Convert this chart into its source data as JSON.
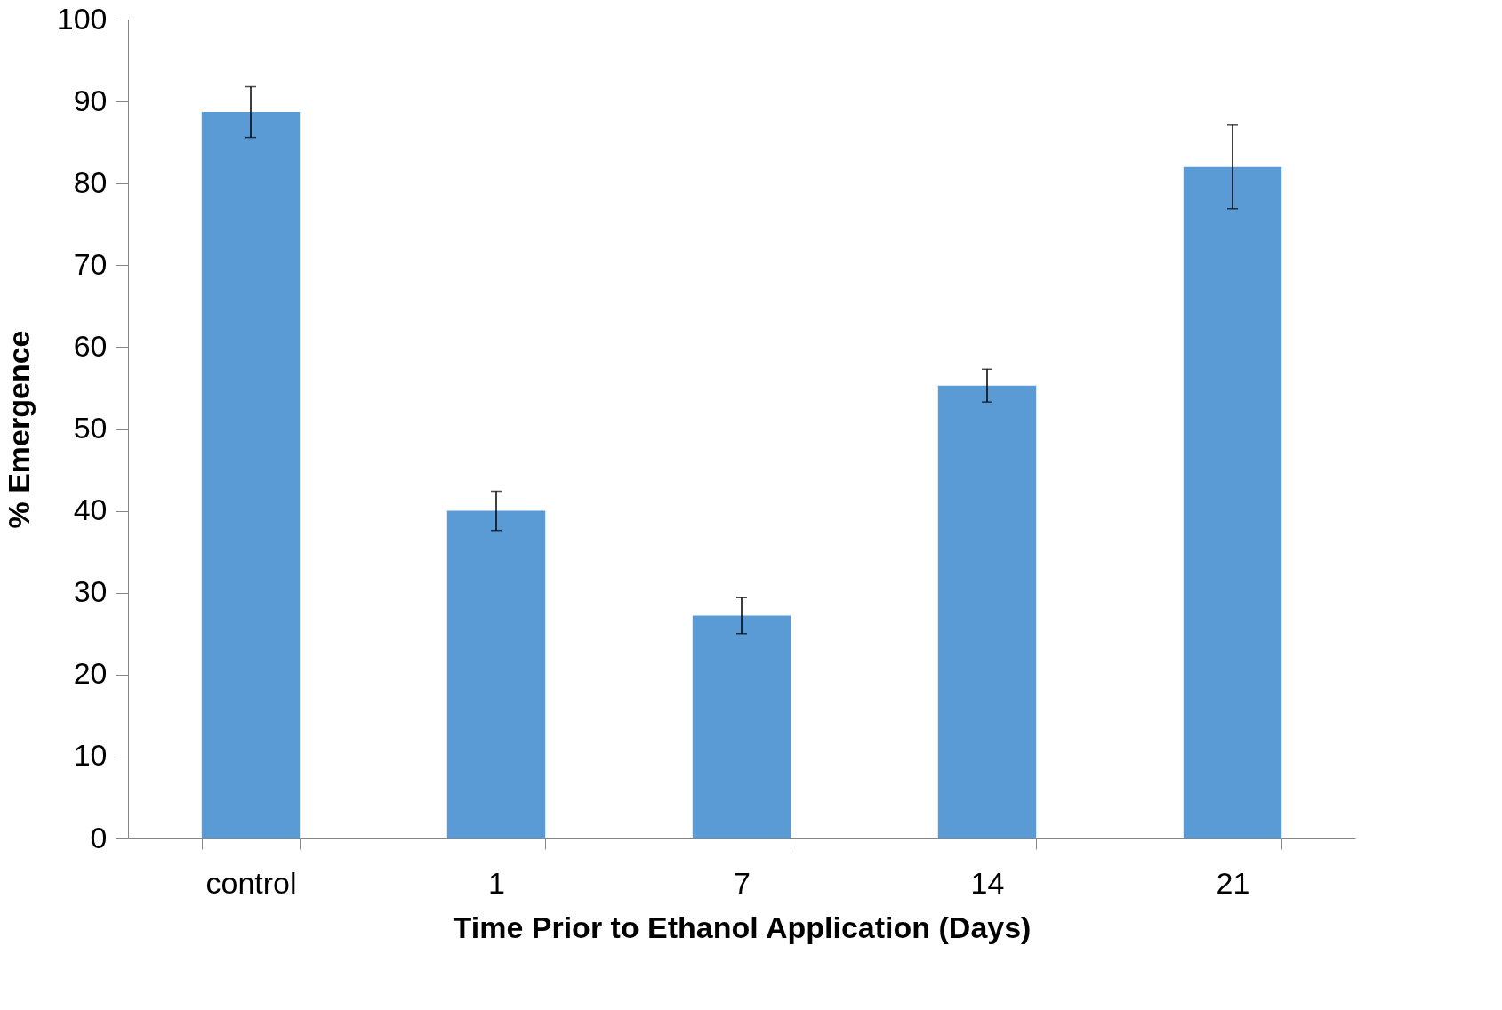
{
  "chart_data": {
    "type": "bar",
    "xlabel": "Time Prior to Ethanol Application (Days)",
    "ylabel": "% Emergence",
    "categories": [
      "control",
      "1",
      "7",
      "14",
      "21"
    ],
    "values": [
      88.7,
      40,
      27.2,
      55.3,
      82
    ],
    "errors": [
      3.1,
      2.4,
      2.2,
      2,
      5.1
    ],
    "color": "#5b9bd5",
    "ylim": [
      0,
      100
    ],
    "yticks": [
      0,
      10,
      20,
      30,
      40,
      50,
      60,
      70,
      80,
      90,
      100
    ],
    "grid": false
  }
}
